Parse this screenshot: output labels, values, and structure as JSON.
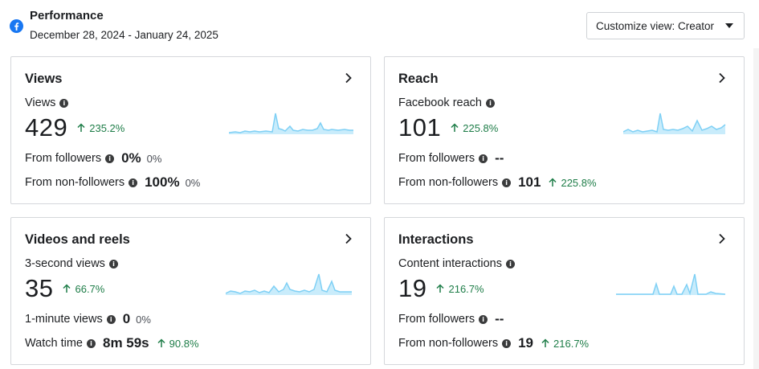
{
  "header": {
    "title": "Performance",
    "date_range": "December 28, 2024 - January 24, 2025",
    "customize_label": "Customize view: Creator",
    "brand_color": "#1877f2"
  },
  "cards": {
    "views": {
      "title": "Views",
      "metric_label": "Views",
      "value": "429",
      "change": "235.2%",
      "rows": [
        {
          "label": "From followers",
          "value": "0%",
          "pct": "0%"
        },
        {
          "label": "From non-followers",
          "value": "100%",
          "pct": "0%"
        }
      ]
    },
    "reach": {
      "title": "Reach",
      "metric_label": "Facebook reach",
      "value": "101",
      "change": "225.8%",
      "rows": [
        {
          "label": "From followers",
          "value": "--"
        },
        {
          "label": "From non-followers",
          "value": "101",
          "change": "225.8%"
        }
      ]
    },
    "videos": {
      "title": "Videos and reels",
      "metric_label": "3-second views",
      "value": "35",
      "change": "66.7%",
      "rows": [
        {
          "label": "1-minute views",
          "value": "0",
          "pct": "0%"
        },
        {
          "label": "Watch time",
          "value": "8m 59s",
          "change": "90.8%"
        }
      ]
    },
    "interactions": {
      "title": "Interactions",
      "metric_label": "Content interactions",
      "value": "19",
      "change": "216.7%",
      "rows": [
        {
          "label": "From followers",
          "value": "--"
        },
        {
          "label": "From non-followers",
          "value": "19",
          "change": "216.7%"
        }
      ]
    }
  },
  "icons": {
    "logo": "facebook-icon",
    "info": "info-icon",
    "chevron": "chevron-right-icon",
    "trend": "arrow-up-icon",
    "dropdown": "caret-down-icon"
  },
  "colors": {
    "positive": "#1e7d48",
    "spark_line": "#7fd0f5",
    "spark_fill": "#c9ecfb"
  }
}
